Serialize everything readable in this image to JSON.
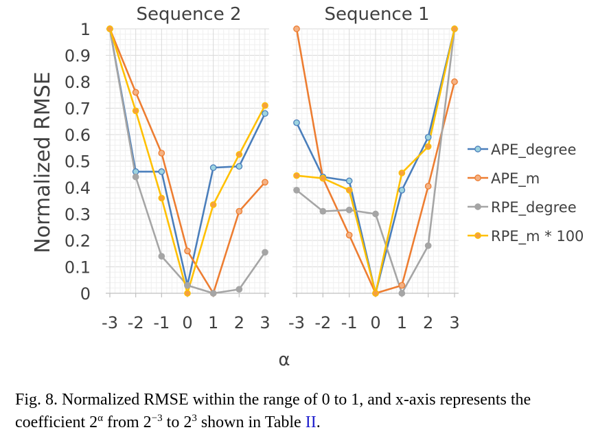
{
  "chart_data": {
    "type": "line",
    "ylabel": "Normalized RMSE",
    "xlabel": "α",
    "ylim": [
      0,
      1
    ],
    "yticks": [
      "0",
      "0.1",
      "0.2",
      "0.3",
      "0.4",
      "0.5",
      "0.6",
      "0.7",
      "0.8",
      "0.9",
      "1"
    ],
    "legend_position": "right",
    "grid": true,
    "panels": [
      {
        "title": "Sequence 2",
        "categories": [
          "-3",
          "-2",
          "-1",
          "0",
          "1",
          "2",
          "3"
        ],
        "series": [
          {
            "name": "APE_degree",
            "color": "#4a7ebb",
            "marker": "#9dd3e0",
            "values": [
              1.0,
              0.46,
              0.46,
              0.03,
              0.475,
              0.48,
              0.68
            ]
          },
          {
            "name": "APE_m",
            "color": "#ed7d31",
            "marker": "#f4b183",
            "values": [
              1.0,
              0.76,
              0.53,
              0.16,
              0.0,
              0.31,
              0.42
            ]
          },
          {
            "name": "RPE_degree",
            "color": "#a5a5a5",
            "marker": "#a5a5a5",
            "values": [
              1.0,
              0.44,
              0.14,
              0.03,
              0.0,
              0.015,
              0.155
            ]
          },
          {
            "name": "RPE_m * 100",
            "color": "#ffc000",
            "marker": "#f4a040",
            "values": [
              1.0,
              0.69,
              0.36,
              0.0,
              0.335,
              0.525,
              0.71
            ]
          }
        ]
      },
      {
        "title": "Sequence 1",
        "categories": [
          "-3",
          "-2",
          "-1",
          "0",
          "1",
          "2",
          "3"
        ],
        "series": [
          {
            "name": "APE_degree",
            "color": "#4a7ebb",
            "marker": "#9dd3e0",
            "values": [
              0.645,
              0.44,
              0.425,
              0.0,
              0.39,
              0.59,
              1.0
            ]
          },
          {
            "name": "APE_m",
            "color": "#ed7d31",
            "marker": "#f4b183",
            "values": [
              1.0,
              0.435,
              0.22,
              0.0,
              0.03,
              0.405,
              0.8
            ]
          },
          {
            "name": "RPE_degree",
            "color": "#a5a5a5",
            "marker": "#a5a5a5",
            "values": [
              0.39,
              0.31,
              0.315,
              0.3,
              0.0,
              0.18,
              1.0
            ]
          },
          {
            "name": "RPE_m * 100",
            "color": "#ffc000",
            "marker": "#f4a040",
            "values": [
              0.445,
              0.435,
              0.39,
              0.0,
              0.455,
              0.555,
              1.0
            ]
          }
        ]
      }
    ]
  },
  "caption": {
    "prefix": "Fig. 8.  Normalized RMSE within the range of 0 to 1, and x-axis represents the coefficient 2",
    "sup_alpha": "α",
    "from_text": " from 2",
    "sup_neg3": "−3",
    "to_text": " to 2",
    "sup_3": "3",
    "shown_text": " shown in Table ",
    "table_ref": "II",
    "end": "."
  }
}
